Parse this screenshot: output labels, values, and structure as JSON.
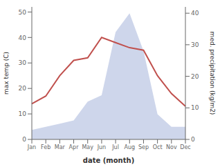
{
  "chart_data": {
    "type": "line",
    "categories": [
      "Jan",
      "Feb",
      "Mar",
      "Apr",
      "May",
      "Jun",
      "Jul",
      "Aug",
      "Sep",
      "Oct",
      "Nov",
      "Dec"
    ],
    "series": [
      {
        "type": "area",
        "axis": "y2",
        "color": "#c5cfe8",
        "values": [
          3,
          4,
          5,
          6,
          12,
          14,
          34,
          40,
          28,
          8,
          4,
          4
        ]
      },
      {
        "type": "line",
        "color": "#c0504d",
        "values": [
          14,
          17,
          25,
          31,
          32,
          40,
          38,
          36,
          35,
          25,
          18,
          13
        ]
      }
    ],
    "xlabel": "date (month)",
    "ylabel": "max temp (C)",
    "y2label": "med. precipitation (kg/m2)",
    "ylim": [
      0,
      52
    ],
    "yticks": [
      0,
      10,
      20,
      30,
      40,
      50
    ],
    "y2lim": [
      0,
      42
    ],
    "y2ticks": [
      0,
      10,
      20,
      30,
      40
    ],
    "grid": false
  }
}
